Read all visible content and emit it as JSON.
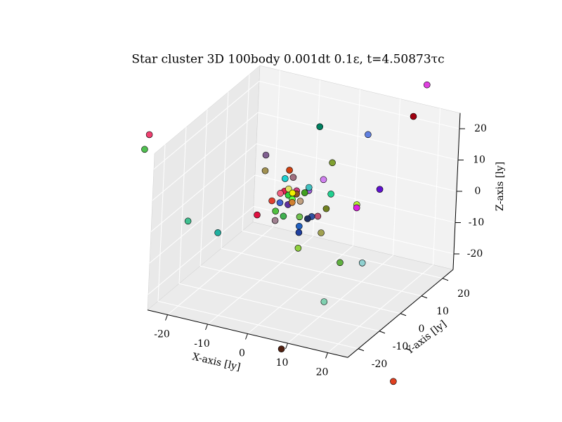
{
  "chart_data": {
    "type": "scatter3d",
    "title": "Star cluster 3D 100body 0.001dt 0.1ε, t=4.50873τc",
    "xlabel": "X-axis [ly]",
    "ylabel": "Y-axis [ly]",
    "zlabel": "Z-axis [ly]",
    "xlim": [
      -25,
      25
    ],
    "ylim": [
      -25,
      25
    ],
    "zlim": [
      -25,
      25
    ],
    "xticks": [
      -20,
      -10,
      0,
      10,
      20
    ],
    "yticks": [
      -20,
      -10,
      0,
      10,
      20
    ],
    "zticks": [
      -20,
      -10,
      0,
      10,
      20
    ],
    "grid": true,
    "x": [
      19,
      16,
      3,
      10,
      -29,
      -30,
      -10,
      4,
      -10,
      -4,
      -3,
      -5,
      2,
      11,
      4,
      1,
      8,
      8,
      -9,
      -8,
      3,
      -7,
      -5,
      -7,
      -1,
      1,
      2,
      1,
      -1,
      -1,
      2,
      -21,
      -16,
      -1,
      7,
      10,
      6,
      1,
      24,
      -5,
      -4,
      -2,
      0,
      -2,
      -4,
      -3,
      -6,
      -4,
      -3,
      -6,
      -3,
      -1,
      1
    ],
    "y": [
      20,
      20,
      0,
      10,
      -20,
      -20,
      0,
      5,
      0,
      0,
      0,
      0,
      5,
      15,
      5,
      0,
      10,
      10,
      -5,
      0,
      5,
      0,
      0,
      0,
      0,
      5,
      0,
      0,
      0,
      0,
      5,
      -15,
      -10,
      0,
      5,
      10,
      0,
      -10,
      0,
      0,
      0,
      0,
      0,
      0,
      0,
      0,
      0,
      0,
      0,
      0,
      0,
      0,
      0
    ],
    "z": [
      35,
      24,
      28,
      22,
      27,
      22,
      15,
      14,
      10,
      12,
      10,
      9,
      8,
      2,
      4,
      7,
      -1,
      -2,
      -1,
      1,
      -1,
      -2,
      -3,
      -5,
      -2,
      -4,
      -1,
      -2,
      -5,
      -7,
      -9,
      -1,
      -6,
      -12,
      -17,
      -19,
      -27,
      -38,
      -47,
      5,
      6,
      6,
      6,
      5,
      4,
      3,
      1,
      1,
      2,
      4,
      5,
      3,
      8
    ],
    "colors": [
      "#e040e0",
      "#a00010",
      "#008060",
      "#6080e0",
      "#f04070",
      "#50c050",
      "#806090",
      "#80a030",
      "#a09050",
      "#d04010",
      "#a07080",
      "#20d0d0",
      "#d080f0",
      "#6010d0",
      "#20d090",
      "#a060e0",
      "#b0f030",
      "#e020e0",
      "#e01040",
      "#e04030",
      "#708020",
      "#50c040",
      "#40b050",
      "#a08090",
      "#70c050",
      "#c05070",
      "#3050a0",
      "#203060",
      "#2060c0",
      "#2040a0",
      "#a0a050",
      "#40c090",
      "#20b0a0",
      "#90d040",
      "#60b040",
      "#90d0d0",
      "#80d0b0",
      "#502010",
      "#e04020",
      "#e02050",
      "#e0e060",
      "#d04080",
      "#40a020",
      "#905020",
      "#30d040",
      "#60ff40",
      "#4060d0",
      "#6030a0",
      "#d08030",
      "#f06080",
      "#f0f000",
      "#c0a080",
      "#40c0c0"
    ]
  }
}
